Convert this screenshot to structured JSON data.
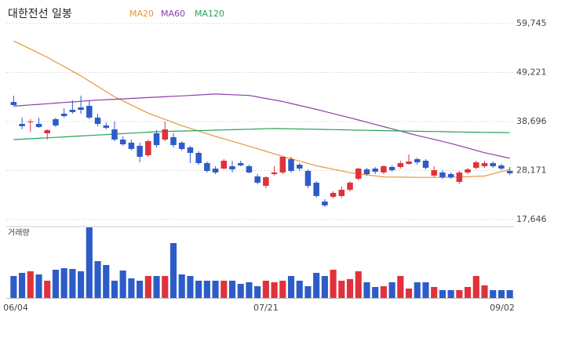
{
  "chart_data": {
    "type": "candlestick",
    "title": "대한전선 일봉",
    "categories": [
      "06/04",
      null,
      null,
      null,
      null,
      null,
      null,
      null,
      null,
      null,
      null,
      null,
      null,
      null,
      null,
      null,
      null,
      null,
      null,
      null,
      null,
      null,
      null,
      null,
      null,
      null,
      null,
      null,
      null,
      null,
      "07/21",
      null,
      null,
      null,
      null,
      null,
      null,
      null,
      null,
      null,
      null,
      null,
      null,
      null,
      null,
      null,
      null,
      null,
      null,
      null,
      null,
      null,
      null,
      null,
      null,
      null,
      null,
      null,
      null,
      "09/02"
    ],
    "open": [
      42900,
      38190,
      38530,
      38190,
      36170,
      39200,
      40380,
      41220,
      41730,
      42060,
      39540,
      37850,
      37010,
      34820,
      34150,
      33480,
      31450,
      36170,
      34820,
      35330,
      34150,
      33140,
      31960,
      29770,
      28590,
      28590,
      29100,
      29770,
      29100,
      26910,
      24890,
      27410,
      27750,
      30610,
      29430,
      28090,
      25560,
      21520,
      22530,
      22700,
      24050,
      26400,
      28420,
      28590,
      27750,
      28930,
      28930,
      29600,
      30610,
      30280,
      27080,
      27750,
      27410,
      25730,
      27750,
      28760,
      29100,
      29770,
      29270,
      28090
    ],
    "high": [
      44250,
      39540,
      39200,
      39540,
      37010,
      39540,
      41560,
      43240,
      44250,
      43240,
      40380,
      38530,
      38700,
      35500,
      34820,
      34150,
      34820,
      36840,
      38700,
      36170,
      34480,
      33480,
      32300,
      30110,
      29100,
      30610,
      30280,
      30280,
      29440,
      27410,
      26910,
      29100,
      31120,
      31120,
      29770,
      28430,
      25900,
      22030,
      23710,
      24720,
      25900,
      28760,
      28760,
      28930,
      29270,
      29270,
      30280,
      31620,
      30950,
      30610,
      29100,
      28260,
      27750,
      28090,
      28760,
      30280,
      30280,
      30110,
      29600,
      28930
    ],
    "low": [
      42060,
      37010,
      36510,
      37350,
      34820,
      37520,
      39540,
      40380,
      40380,
      39200,
      37690,
      37010,
      34480,
      33480,
      32470,
      29940,
      31120,
      33140,
      34480,
      33140,
      32470,
      29770,
      29440,
      27750,
      27410,
      28430,
      27750,
      29100,
      27580,
      25230,
      24380,
      27080,
      27410,
      27750,
      28090,
      24380,
      22360,
      20340,
      22190,
      22360,
      23710,
      26070,
      27080,
      27410,
      27410,
      27920,
      28590,
      29440,
      29440,
      28430,
      26740,
      26400,
      26400,
      25230,
      27410,
      28430,
      28760,
      28760,
      28260,
      27250
    ],
    "close": [
      42230,
      37690,
      38700,
      37520,
      36840,
      37850,
      39870,
      40720,
      41220,
      39540,
      38190,
      37350,
      34820,
      33810,
      32800,
      31120,
      34480,
      33640,
      37010,
      33640,
      32800,
      31960,
      29770,
      28090,
      27750,
      30280,
      28420,
      29270,
      27750,
      25560,
      26740,
      27750,
      31120,
      28090,
      28590,
      24890,
      22700,
      20680,
      23370,
      24050,
      25560,
      28590,
      27410,
      27920,
      29100,
      28260,
      29770,
      30110,
      29940,
      28760,
      28260,
      26740,
      26740,
      27750,
      28420,
      29940,
      29770,
      29100,
      28590,
      27580
    ],
    "up_color": "#e0323c",
    "down_color": "#2d5cc8",
    "series": [
      {
        "name": "MA20",
        "color": "#e8973a",
        "values": [
          56000,
          55125,
          54250,
          53375,
          52500,
          51500,
          50500,
          49500,
          48500,
          47375,
          46250,
          45125,
          44000,
          43125,
          42250,
          41375,
          40500,
          39825,
          39150,
          38475,
          37800,
          37225,
          36650,
          36075,
          35500,
          34975,
          34450,
          33925,
          33400,
          32850,
          32300,
          31750,
          31200,
          30700,
          30200,
          29700,
          29200,
          28825,
          28450,
          28075,
          27700,
          27475,
          27250,
          27025,
          26800,
          26775,
          26750,
          26725,
          26700,
          26700,
          26700,
          26700,
          26700,
          26775,
          26850,
          26925,
          27000,
          27470,
          27930,
          28400
        ]
      },
      {
        "name": "MA60",
        "color": "#8e3ea8",
        "values": [
          42000,
          42130,
          42260,
          42390,
          42520,
          42650,
          42780,
          42910,
          43040,
          43170,
          43300,
          43390,
          43480,
          43570,
          43660,
          43750,
          43840,
          43930,
          44020,
          44110,
          44200,
          44300,
          44400,
          44500,
          44600,
          44525,
          44450,
          44375,
          44300,
          43975,
          43650,
          43325,
          43000,
          42575,
          42150,
          41725,
          41300,
          40850,
          40400,
          39950,
          39500,
          39025,
          38550,
          38075,
          37600,
          37125,
          36650,
          36175,
          35700,
          35275,
          34850,
          34425,
          34000,
          33500,
          33000,
          32500,
          32000,
          31600,
          31200,
          30800
        ]
      },
      {
        "name": "MA120",
        "color": "#26a35a",
        "values": [
          34800,
          34900,
          35000,
          35100,
          35200,
          35300,
          35400,
          35500,
          35600,
          35700,
          35800,
          35900,
          36000,
          36100,
          36200,
          36300,
          36400,
          36500,
          36550,
          36600,
          36650,
          36700,
          36750,
          36800,
          36850,
          36900,
          36950,
          37000,
          37050,
          37100,
          37150,
          37200,
          37165,
          37130,
          37095,
          37060,
          37025,
          36990,
          36955,
          36920,
          36885,
          36850,
          36815,
          36780,
          36740,
          36700,
          36670,
          36640,
          36610,
          36580,
          36550,
          36520,
          36490,
          36460,
          36430,
          36400,
          36380,
          36360,
          36340,
          36300
        ]
      }
    ],
    "volume_label": "거래량",
    "volume": [
      280000,
      320000,
      340000,
      300000,
      220000,
      360000,
      380000,
      370000,
      340000,
      900000,
      470000,
      420000,
      220000,
      350000,
      250000,
      220000,
      280000,
      280000,
      280000,
      700000,
      300000,
      280000,
      220000,
      220000,
      220000,
      220000,
      220000,
      180000,
      200000,
      150000,
      220000,
      200000,
      220000,
      280000,
      220000,
      150000,
      320000,
      280000,
      360000,
      220000,
      240000,
      340000,
      200000,
      140000,
      150000,
      200000,
      280000,
      120000,
      200000,
      200000,
      140000,
      100000,
      100000,
      100000,
      140000,
      280000,
      160000,
      100000,
      100000,
      100000
    ],
    "vlim": [
      0,
      950000
    ],
    "ylim": [
      17646,
      59745
    ],
    "yticks": [
      {
        "value": 59745,
        "label": "59,745"
      },
      {
        "value": 49221,
        "label": "49,221"
      },
      {
        "value": 38696,
        "label": "38,696"
      },
      {
        "value": 28171,
        "label": "28,171"
      },
      {
        "value": 17646,
        "label": "17,646"
      }
    ]
  }
}
